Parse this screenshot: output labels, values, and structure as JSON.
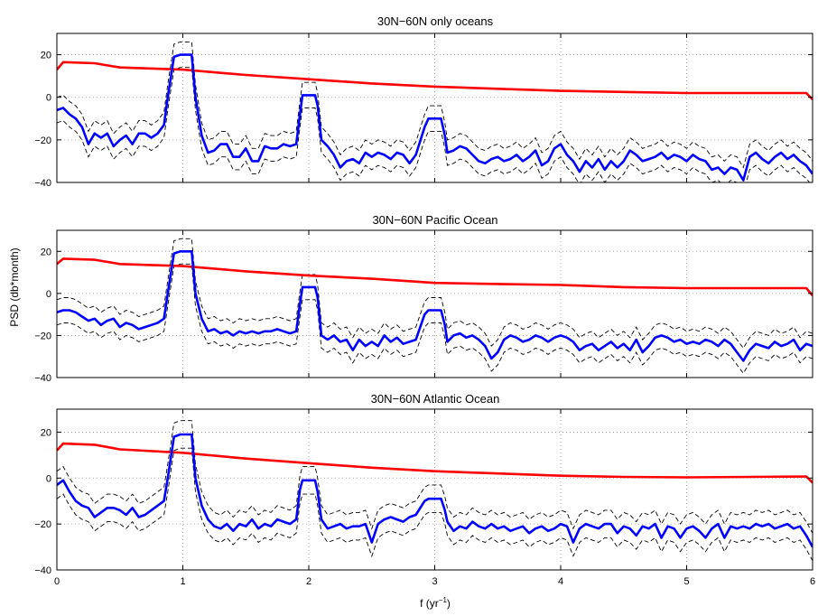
{
  "chart_data": [
    {
      "type": "line",
      "title": "30N−60N only oceans",
      "xlim": [
        0,
        6
      ],
      "ylim": [
        -40,
        30
      ],
      "xticks": [
        0,
        1,
        2,
        3,
        4,
        5,
        6
      ],
      "yticks": [
        -40,
        -20,
        0,
        20
      ],
      "grid": true,
      "series": [
        {
          "role": "background",
          "color": "#ff0000",
          "x": [
            0,
            0.05,
            0.3,
            0.5,
            1.0,
            1.5,
            2.0,
            2.5,
            3.0,
            3.5,
            4.0,
            4.5,
            5.0,
            5.5,
            5.95,
            6.0
          ],
          "values": [
            13,
            16.5,
            16,
            14,
            13,
            10.5,
            8.5,
            6.5,
            5,
            4,
            3,
            2.5,
            2,
            2,
            2,
            -1
          ]
        },
        {
          "role": "spectrum",
          "color": "#0000ff",
          "x": [
            0,
            0.05,
            0.1,
            0.15,
            0.2,
            0.25,
            0.3,
            0.35,
            0.4,
            0.45,
            0.5,
            0.55,
            0.6,
            0.65,
            0.7,
            0.75,
            0.8,
            0.85,
            0.88,
            0.93,
            0.98,
            1.02,
            1.07,
            1.1,
            1.15,
            1.2,
            1.25,
            1.3,
            1.35,
            1.4,
            1.45,
            1.5,
            1.55,
            1.6,
            1.65,
            1.7,
            1.75,
            1.8,
            1.85,
            1.9,
            1.93,
            1.95,
            2.0,
            2.05,
            2.07,
            2.1,
            2.15,
            2.2,
            2.25,
            2.3,
            2.35,
            2.4,
            2.45,
            2.5,
            2.55,
            2.6,
            2.65,
            2.7,
            2.75,
            2.8,
            2.85,
            2.92,
            2.95,
            3.0,
            3.05,
            3.08,
            3.1,
            3.15,
            3.2,
            3.25,
            3.3,
            3.35,
            3.4,
            3.45,
            3.5,
            3.55,
            3.6,
            3.65,
            3.7,
            3.75,
            3.8,
            3.85,
            3.9,
            3.95,
            4.0,
            4.05,
            4.1,
            4.15,
            4.2,
            4.25,
            4.3,
            4.35,
            4.4,
            4.45,
            4.5,
            4.55,
            4.6,
            4.65,
            4.7,
            4.75,
            4.8,
            4.85,
            4.9,
            4.95,
            5.0,
            5.05,
            5.1,
            5.15,
            5.2,
            5.25,
            5.3,
            5.35,
            5.4,
            5.45,
            5.5,
            5.55,
            5.6,
            5.65,
            5.7,
            5.75,
            5.8,
            5.85,
            5.9,
            5.95,
            6.0
          ],
          "values": [
            -6,
            -5,
            -8,
            -10,
            -14,
            -22,
            -17,
            -19,
            -17,
            -23,
            -20,
            -18,
            -22,
            -17,
            -17,
            -19,
            -17,
            -13,
            0,
            19,
            20,
            20,
            20,
            0,
            -18,
            -26,
            -25,
            -22,
            -22,
            -28,
            -28,
            -24,
            -30,
            -30,
            -23,
            -24,
            -24,
            -22,
            -23,
            -22,
            -8,
            1,
            1,
            1,
            -4,
            -20,
            -23,
            -27,
            -33,
            -30,
            -29,
            -31,
            -26,
            -28,
            -26,
            -27,
            -29,
            -26,
            -27,
            -31,
            -27,
            -14,
            -10,
            -10,
            -10,
            -18,
            -26,
            -25,
            -23,
            -24,
            -27,
            -30,
            -31,
            -29,
            -28,
            -30,
            -29,
            -27,
            -30,
            -28,
            -25,
            -32,
            -30,
            -24,
            -22,
            -27,
            -30,
            -35,
            -30,
            -33,
            -29,
            -34,
            -30,
            -33,
            -30,
            -25,
            -27,
            -30,
            -29,
            -28,
            -26,
            -29,
            -27,
            -28,
            -30,
            -27,
            -29,
            -30,
            -34,
            -33,
            -36,
            -33,
            -34,
            -39,
            -28,
            -26,
            -29,
            -31,
            -28,
            -26,
            -29,
            -27,
            -30,
            -32,
            -36
          ]
        }
      ]
    },
    {
      "type": "line",
      "title": "30N−60N Pacific Ocean",
      "xlim": [
        0,
        6
      ],
      "ylim": [
        -40,
        30
      ],
      "xticks": [
        0,
        1,
        2,
        3,
        4,
        5,
        6
      ],
      "yticks": [
        -40,
        -20,
        0,
        20
      ],
      "grid": true,
      "series": [
        {
          "role": "background",
          "color": "#ff0000",
          "x": [
            0,
            0.05,
            0.3,
            0.5,
            1.0,
            1.5,
            2.0,
            2.5,
            3.0,
            3.5,
            4.0,
            4.5,
            5.0,
            5.5,
            5.95,
            6.0
          ],
          "values": [
            14,
            16.5,
            16,
            14,
            13,
            10.5,
            8.5,
            7,
            5,
            4.5,
            4,
            3,
            2.5,
            2.5,
            2.5,
            -1
          ]
        },
        {
          "role": "spectrum",
          "color": "#0000ff",
          "x": [
            0,
            0.05,
            0.1,
            0.15,
            0.2,
            0.25,
            0.3,
            0.35,
            0.4,
            0.45,
            0.5,
            0.55,
            0.6,
            0.65,
            0.7,
            0.75,
            0.8,
            0.85,
            0.88,
            0.93,
            0.98,
            1.02,
            1.07,
            1.1,
            1.15,
            1.2,
            1.25,
            1.3,
            1.35,
            1.4,
            1.45,
            1.5,
            1.55,
            1.6,
            1.65,
            1.7,
            1.75,
            1.8,
            1.85,
            1.9,
            1.93,
            1.95,
            2.0,
            2.05,
            2.07,
            2.1,
            2.15,
            2.2,
            2.25,
            2.3,
            2.35,
            2.4,
            2.45,
            2.5,
            2.55,
            2.6,
            2.65,
            2.7,
            2.75,
            2.8,
            2.85,
            2.92,
            2.95,
            3.0,
            3.05,
            3.08,
            3.1,
            3.15,
            3.2,
            3.25,
            3.3,
            3.35,
            3.4,
            3.45,
            3.5,
            3.55,
            3.6,
            3.65,
            3.7,
            3.75,
            3.8,
            3.85,
            3.9,
            3.95,
            4.0,
            4.05,
            4.1,
            4.15,
            4.2,
            4.25,
            4.3,
            4.35,
            4.4,
            4.45,
            4.5,
            4.55,
            4.6,
            4.65,
            4.7,
            4.75,
            4.8,
            4.85,
            4.9,
            4.95,
            5.0,
            5.05,
            5.1,
            5.15,
            5.2,
            5.25,
            5.3,
            5.35,
            5.4,
            5.45,
            5.5,
            5.55,
            5.6,
            5.65,
            5.7,
            5.75,
            5.8,
            5.85,
            5.9,
            5.95,
            6.0
          ],
          "values": [
            -9,
            -8,
            -8,
            -9,
            -11,
            -13,
            -12,
            -15,
            -13,
            -12,
            -16,
            -14,
            -15,
            -17,
            -16,
            -15,
            -14,
            -12,
            0,
            19,
            20,
            20,
            20,
            0,
            -12,
            -18,
            -17,
            -19,
            -18,
            -20,
            -18,
            -19,
            -18,
            -19,
            -18,
            -18,
            -17,
            -18,
            -19,
            -18,
            -5,
            3,
            3,
            3,
            -2,
            -20,
            -22,
            -20,
            -23,
            -22,
            -27,
            -22,
            -25,
            -23,
            -25,
            -20,
            -23,
            -21,
            -24,
            -23,
            -22,
            -10,
            -8,
            -8,
            -8,
            -15,
            -23,
            -20,
            -19,
            -21,
            -20,
            -22,
            -25,
            -31,
            -28,
            -22,
            -20,
            -21,
            -23,
            -22,
            -20,
            -21,
            -23,
            -21,
            -20,
            -21,
            -23,
            -27,
            -25,
            -24,
            -27,
            -25,
            -23,
            -26,
            -24,
            -27,
            -22,
            -28,
            -25,
            -21,
            -20,
            -21,
            -23,
            -22,
            -24,
            -23,
            -24,
            -22,
            -23,
            -25,
            -22,
            -24,
            -28,
            -32,
            -27,
            -24,
            -25,
            -26,
            -23,
            -25,
            -24,
            -22,
            -27,
            -24,
            -25
          ]
        }
      ]
    },
    {
      "type": "line",
      "title": "30N−60N Atlantic Ocean",
      "xlim": [
        0,
        6
      ],
      "ylim": [
        -40,
        30
      ],
      "xticks": [
        0,
        1,
        2,
        3,
        4,
        5,
        6
      ],
      "yticks": [
        -40,
        -20,
        0,
        20
      ],
      "grid": true,
      "xlabel": "f (yr",
      "xlabel_sup": "−1",
      "xlabel_tail": ")",
      "series": [
        {
          "role": "background",
          "color": "#ff0000",
          "x": [
            0,
            0.05,
            0.3,
            0.5,
            1.0,
            1.5,
            2.0,
            2.5,
            3.0,
            3.5,
            4.0,
            4.5,
            5.0,
            5.5,
            5.95,
            6.0
          ],
          "values": [
            12,
            15,
            14.5,
            12.5,
            11,
            8.5,
            6.5,
            4.5,
            3,
            2,
            1,
            0.5,
            0.3,
            0.5,
            0.7,
            -2
          ]
        },
        {
          "role": "spectrum",
          "color": "#0000ff",
          "x": [
            0,
            0.05,
            0.1,
            0.15,
            0.2,
            0.25,
            0.3,
            0.35,
            0.4,
            0.45,
            0.5,
            0.55,
            0.6,
            0.65,
            0.7,
            0.75,
            0.8,
            0.85,
            0.88,
            0.93,
            0.98,
            1.02,
            1.07,
            1.1,
            1.15,
            1.2,
            1.25,
            1.3,
            1.35,
            1.4,
            1.45,
            1.5,
            1.55,
            1.6,
            1.65,
            1.7,
            1.75,
            1.8,
            1.85,
            1.9,
            1.93,
            1.95,
            2.0,
            2.05,
            2.07,
            2.1,
            2.15,
            2.2,
            2.25,
            2.3,
            2.35,
            2.4,
            2.45,
            2.5,
            2.55,
            2.6,
            2.65,
            2.7,
            2.75,
            2.8,
            2.85,
            2.92,
            2.95,
            3.0,
            3.05,
            3.08,
            3.1,
            3.15,
            3.2,
            3.25,
            3.3,
            3.35,
            3.4,
            3.45,
            3.5,
            3.55,
            3.6,
            3.65,
            3.7,
            3.75,
            3.8,
            3.85,
            3.9,
            3.95,
            4.0,
            4.05,
            4.1,
            4.15,
            4.2,
            4.25,
            4.3,
            4.35,
            4.4,
            4.45,
            4.5,
            4.55,
            4.6,
            4.65,
            4.7,
            4.75,
            4.8,
            4.85,
            4.9,
            4.95,
            5.0,
            5.05,
            5.1,
            5.15,
            5.2,
            5.25,
            5.3,
            5.35,
            5.4,
            5.45,
            5.5,
            5.55,
            5.6,
            5.65,
            5.7,
            5.75,
            5.8,
            5.85,
            5.9,
            5.95,
            6.0
          ],
          "values": [
            -3,
            -1,
            -6,
            -10,
            -12,
            -13,
            -17,
            -15,
            -13,
            -13,
            -14,
            -16,
            -13,
            -17,
            -16,
            -14,
            -12,
            -10,
            0,
            18,
            19,
            19,
            19,
            0,
            -12,
            -18,
            -21,
            -22,
            -20,
            -23,
            -20,
            -21,
            -18,
            -22,
            -20,
            -21,
            -18,
            -19,
            -20,
            -18,
            -5,
            -1,
            -1,
            -1,
            -6,
            -18,
            -22,
            -21,
            -20,
            -22,
            -21,
            -21,
            -20,
            -28,
            -20,
            -18,
            -17,
            -18,
            -19,
            -17,
            -16,
            -10,
            -9,
            -9,
            -9,
            -14,
            -19,
            -23,
            -21,
            -22,
            -19,
            -21,
            -22,
            -20,
            -22,
            -21,
            -23,
            -22,
            -21,
            -24,
            -22,
            -21,
            -23,
            -22,
            -20,
            -21,
            -28,
            -22,
            -20,
            -21,
            -22,
            -20,
            -20,
            -24,
            -21,
            -22,
            -25,
            -21,
            -22,
            -20,
            -26,
            -21,
            -22,
            -26,
            -22,
            -21,
            -23,
            -26,
            -22,
            -20,
            -26,
            -21,
            -22,
            -21,
            -22,
            -20,
            -21,
            -20,
            -22,
            -21,
            -20,
            -22,
            -21,
            -25,
            -30
          ]
        }
      ]
    }
  ],
  "ylabel": "PSD (db*month)"
}
